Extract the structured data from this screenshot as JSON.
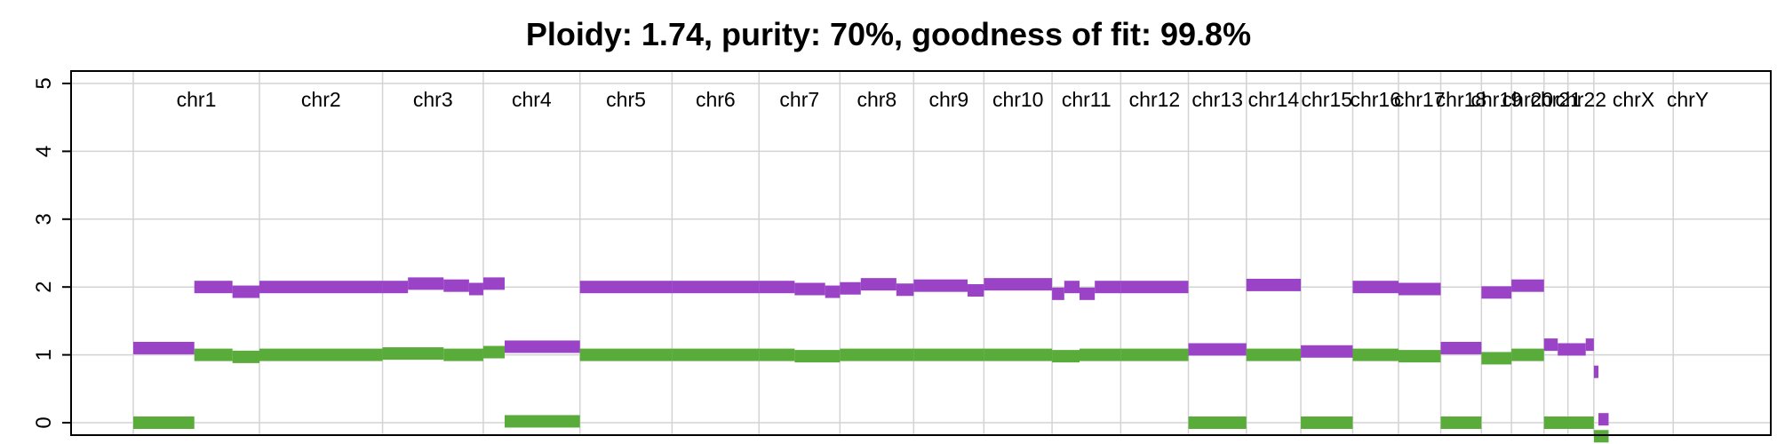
{
  "chart_data": {
    "type": "segments",
    "title": "Ploidy: 1.74, purity: 70%, goodness of fit: 99.8%",
    "ylim": [
      0,
      5
    ],
    "yticks": [
      0,
      1,
      2,
      3,
      4,
      5
    ],
    "grid": true,
    "genome_span_mb": 3100,
    "chromosomes": [
      {
        "name": "chr1",
        "start": 0,
        "end": 248
      },
      {
        "name": "chr2",
        "start": 248,
        "end": 490
      },
      {
        "name": "chr3",
        "start": 490,
        "end": 688
      },
      {
        "name": "chr4",
        "start": 688,
        "end": 878
      },
      {
        "name": "chr5",
        "start": 878,
        "end": 1059
      },
      {
        "name": "chr6",
        "start": 1059,
        "end": 1230
      },
      {
        "name": "chr7",
        "start": 1230,
        "end": 1389
      },
      {
        "name": "chr8",
        "start": 1389,
        "end": 1534
      },
      {
        "name": "chr9",
        "start": 1534,
        "end": 1672
      },
      {
        "name": "chr10",
        "start": 1672,
        "end": 1806
      },
      {
        "name": "chr11",
        "start": 1806,
        "end": 1941
      },
      {
        "name": "chr12",
        "start": 1941,
        "end": 2074
      },
      {
        "name": "chr13",
        "start": 2074,
        "end": 2188
      },
      {
        "name": "chr14",
        "start": 2188,
        "end": 2295
      },
      {
        "name": "chr15",
        "start": 2295,
        "end": 2397
      },
      {
        "name": "chr16",
        "start": 2397,
        "end": 2487
      },
      {
        "name": "chr17",
        "start": 2487,
        "end": 2570
      },
      {
        "name": "chr18",
        "start": 2570,
        "end": 2650
      },
      {
        "name": "chr19",
        "start": 2650,
        "end": 2709
      },
      {
        "name": "chr20",
        "start": 2709,
        "end": 2773
      },
      {
        "name": "chr21",
        "start": 2773,
        "end": 2820
      },
      {
        "name": "chr22",
        "start": 2820,
        "end": 2871
      },
      {
        "name": "chrX",
        "start": 2871,
        "end": 3027
      },
      {
        "name": "chrY",
        "start": 3027,
        "end": 3084
      }
    ],
    "series": [
      {
        "color": "#9a43c6",
        "segments": [
          {
            "x0": 0,
            "x1": 120,
            "y": 1.1
          },
          {
            "x0": 120,
            "x1": 195,
            "y": 2.0
          },
          {
            "x0": 195,
            "x1": 248,
            "y": 1.93
          },
          {
            "x0": 248,
            "x1": 490,
            "y": 2.0
          },
          {
            "x0": 490,
            "x1": 540,
            "y": 2.0
          },
          {
            "x0": 540,
            "x1": 610,
            "y": 2.05
          },
          {
            "x0": 610,
            "x1": 660,
            "y": 2.02
          },
          {
            "x0": 660,
            "x1": 688,
            "y": 1.97
          },
          {
            "x0": 688,
            "x1": 730,
            "y": 2.05
          },
          {
            "x0": 730,
            "x1": 878,
            "y": 1.12
          },
          {
            "x0": 878,
            "x1": 1059,
            "y": 2.0
          },
          {
            "x0": 1059,
            "x1": 1230,
            "y": 2.0
          },
          {
            "x0": 1230,
            "x1": 1300,
            "y": 2.0
          },
          {
            "x0": 1300,
            "x1": 1360,
            "y": 1.97
          },
          {
            "x0": 1360,
            "x1": 1389,
            "y": 1.93
          },
          {
            "x0": 1389,
            "x1": 1430,
            "y": 1.98
          },
          {
            "x0": 1430,
            "x1": 1500,
            "y": 2.04
          },
          {
            "x0": 1500,
            "x1": 1534,
            "y": 1.96
          },
          {
            "x0": 1534,
            "x1": 1640,
            "y": 2.02
          },
          {
            "x0": 1640,
            "x1": 1672,
            "y": 1.95
          },
          {
            "x0": 1672,
            "x1": 1806,
            "y": 2.04
          },
          {
            "x0": 1806,
            "x1": 1830,
            "y": 1.9
          },
          {
            "x0": 1830,
            "x1": 1860,
            "y": 2.0
          },
          {
            "x0": 1860,
            "x1": 1890,
            "y": 1.9
          },
          {
            "x0": 1890,
            "x1": 1941,
            "y": 2.0
          },
          {
            "x0": 1941,
            "x1": 2074,
            "y": 2.0
          },
          {
            "x0": 2074,
            "x1": 2188,
            "y": 1.08
          },
          {
            "x0": 2188,
            "x1": 2295,
            "y": 2.03
          },
          {
            "x0": 2295,
            "x1": 2397,
            "y": 1.05
          },
          {
            "x0": 2397,
            "x1": 2487,
            "y": 2.0
          },
          {
            "x0": 2487,
            "x1": 2570,
            "y": 1.97
          },
          {
            "x0": 2570,
            "x1": 2650,
            "y": 1.1
          },
          {
            "x0": 2650,
            "x1": 2709,
            "y": 1.92
          },
          {
            "x0": 2709,
            "x1": 2773,
            "y": 2.02
          },
          {
            "x0": 2773,
            "x1": 2800,
            "y": 1.15
          },
          {
            "x0": 2800,
            "x1": 2855,
            "y": 1.08
          },
          {
            "x0": 2855,
            "x1": 2871,
            "y": 1.15
          },
          {
            "x0": 2871,
            "x1": 2880,
            "y": 0.75
          },
          {
            "x0": 2880,
            "x1": 2900,
            "y": 0.05
          }
        ]
      },
      {
        "color": "#5aac3a",
        "segments": [
          {
            "x0": 0,
            "x1": 120,
            "y": 0.0
          },
          {
            "x0": 120,
            "x1": 195,
            "y": 1.0
          },
          {
            "x0": 195,
            "x1": 248,
            "y": 0.97
          },
          {
            "x0": 248,
            "x1": 490,
            "y": 1.0
          },
          {
            "x0": 490,
            "x1": 610,
            "y": 1.02
          },
          {
            "x0": 610,
            "x1": 688,
            "y": 1.0
          },
          {
            "x0": 688,
            "x1": 730,
            "y": 1.04
          },
          {
            "x0": 730,
            "x1": 878,
            "y": 0.02
          },
          {
            "x0": 878,
            "x1": 1059,
            "y": 1.0
          },
          {
            "x0": 1059,
            "x1": 1230,
            "y": 1.0
          },
          {
            "x0": 1230,
            "x1": 1300,
            "y": 1.0
          },
          {
            "x0": 1300,
            "x1": 1389,
            "y": 0.98
          },
          {
            "x0": 1389,
            "x1": 1534,
            "y": 1.0
          },
          {
            "x0": 1534,
            "x1": 1672,
            "y": 1.0
          },
          {
            "x0": 1672,
            "x1": 1806,
            "y": 1.0
          },
          {
            "x0": 1806,
            "x1": 1860,
            "y": 0.98
          },
          {
            "x0": 1860,
            "x1": 1941,
            "y": 1.0
          },
          {
            "x0": 1941,
            "x1": 2074,
            "y": 1.0
          },
          {
            "x0": 2074,
            "x1": 2188,
            "y": 0.0
          },
          {
            "x0": 2188,
            "x1": 2295,
            "y": 1.0
          },
          {
            "x0": 2295,
            "x1": 2397,
            "y": 0.0
          },
          {
            "x0": 2397,
            "x1": 2487,
            "y": 1.0
          },
          {
            "x0": 2487,
            "x1": 2570,
            "y": 0.98
          },
          {
            "x0": 2570,
            "x1": 2650,
            "y": 0.0
          },
          {
            "x0": 2650,
            "x1": 2709,
            "y": 0.95
          },
          {
            "x0": 2709,
            "x1": 2773,
            "y": 1.0
          },
          {
            "x0": 2773,
            "x1": 2871,
            "y": 0.0
          },
          {
            "x0": 2871,
            "x1": 2900,
            "y": -0.2
          }
        ]
      }
    ]
  }
}
